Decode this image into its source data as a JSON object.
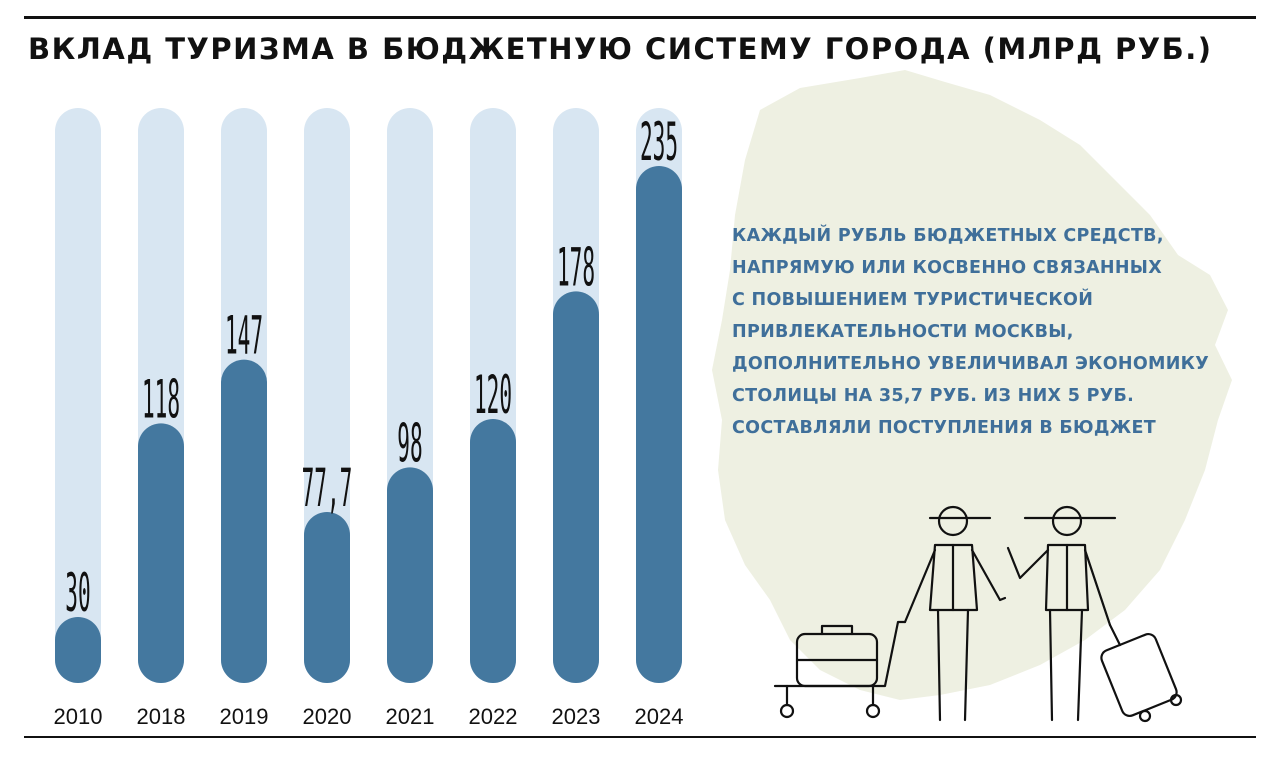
{
  "chart_data": {
    "type": "bar",
    "title": "ВКЛАД ТУРИЗМА В БЮДЖЕТНУЮ СИСТЕМУ ГОРОДА (МЛРД РУБ.)",
    "categories": [
      "2010",
      "2018",
      "2019",
      "2020",
      "2021",
      "2022",
      "2023",
      "2024"
    ],
    "values": [
      30,
      118,
      147,
      77.7,
      98,
      120,
      178,
      235
    ],
    "value_labels": [
      "30",
      "118",
      "147",
      "77,7",
      "98",
      "120",
      "178",
      "235"
    ],
    "xlabel": "",
    "ylabel": "",
    "ylim": [
      0,
      235
    ],
    "grid": false,
    "legend": "none"
  },
  "note": {
    "lines": [
      "КАЖДЫЙ РУБЛЬ БЮДЖЕТНЫХ СРЕДСТВ,",
      "НАПРЯМУЮ ИЛИ КОСВЕННО СВЯЗАННЫХ",
      "С ПОВЫШЕНИЕМ ТУРИСТИЧЕСКОЙ",
      "ПРИВЛЕКАТЕЛЬНОСТИ МОСКВЫ,",
      "ДОПОЛНИТЕЛЬНО УВЕЛИЧИВАЛ ЭКОНОМИКУ",
      "СТОЛИЦЫ НА 35,7 РУБ. ИЗ НИХ 5 РУБ.",
      "СОСТАВЛЯЛИ ПОСТУПЛЕНИЯ В БЮДЖЕТ"
    ]
  },
  "colors": {
    "bar": "#44789f",
    "track": "#d8e6f2",
    "note_text": "#3f6f9a",
    "map": "#eef0e2",
    "ink": "#111111"
  },
  "decor": {
    "background": "moscow-map-silhouette",
    "illustration": "tourists-with-luggage-icon"
  }
}
